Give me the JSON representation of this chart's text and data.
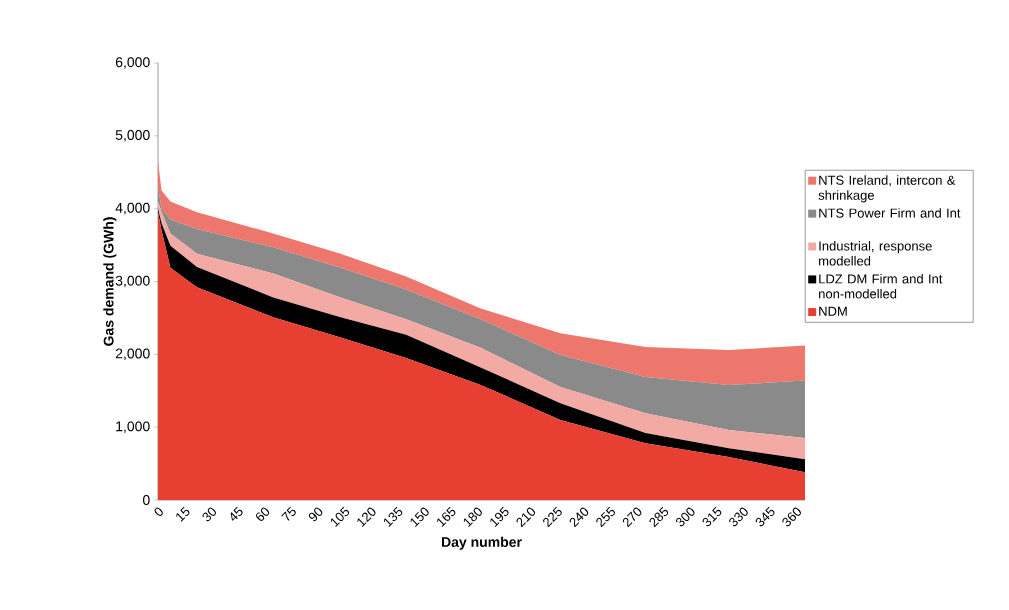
{
  "chart_data": {
    "type": "area",
    "stacked": true,
    "xlabel": "Day number",
    "ylabel": "Gas demand (GWh)",
    "x": [
      0,
      2,
      7,
      22,
      65,
      103,
      140,
      182,
      227,
      275,
      322,
      365
    ],
    "xlim": [
      0,
      365
    ],
    "xticks": [
      0,
      15,
      30,
      45,
      60,
      75,
      90,
      105,
      120,
      135,
      150,
      165,
      180,
      195,
      210,
      225,
      240,
      255,
      270,
      285,
      300,
      315,
      330,
      345,
      360
    ],
    "ylim": [
      0,
      6000
    ],
    "yticks": [
      {
        "value": 0,
        "label": "0"
      },
      {
        "value": 1000,
        "label": "1,000"
      },
      {
        "value": 2000,
        "label": "2,000"
      },
      {
        "value": 3000,
        "label": "3,000"
      },
      {
        "value": 4000,
        "label": "4,000"
      },
      {
        "value": 5000,
        "label": "5,000"
      },
      {
        "value": 6000,
        "label": "6,000"
      }
    ],
    "grid": false,
    "legend": "right",
    "series": [
      {
        "name": "NDM",
        "color": "#e83f33",
        "values": [
          3950,
          3700,
          3190,
          2920,
          2510,
          2230,
          1950,
          1580,
          1100,
          780,
          590,
          380
        ]
      },
      {
        "name": "LDZ DM Firm and Int non-modelled",
        "color": "#000000",
        "values": [
          50,
          100,
          300,
          280,
          270,
          280,
          320,
          240,
          230,
          140,
          120,
          180
        ]
      },
      {
        "name": "Industrial, response modelled",
        "color": "#f4aaa4",
        "values": [
          100,
          150,
          170,
          180,
          330,
          270,
          210,
          270,
          220,
          270,
          250,
          290
        ]
      },
      {
        "name": "NTS Power Firm and Int",
        "color": "#8a8a8a",
        "values": [
          200,
          50,
          190,
          340,
          360,
          410,
          410,
          390,
          440,
          500,
          620,
          790
        ]
      },
      {
        "name": "NTS Ireland, intercon & shrinkage",
        "color": "#ee776d",
        "values": [
          350,
          250,
          250,
          230,
          190,
          190,
          180,
          150,
          300,
          410,
          480,
          480
        ]
      }
    ]
  }
}
